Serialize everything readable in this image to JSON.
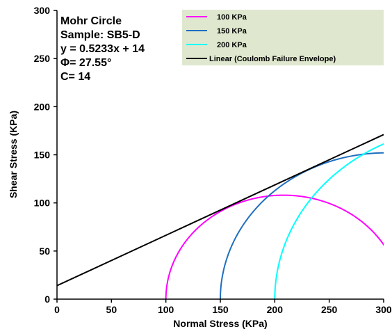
{
  "chart_data": {
    "type": "line",
    "xlabel": "Normal Stress (KPa)",
    "ylabel": "Shear Stress (KPa)",
    "xlim": [
      0,
      300
    ],
    "ylim": [
      0,
      300
    ],
    "xticks": [
      0,
      50,
      100,
      150,
      200,
      250,
      300
    ],
    "yticks": [
      0,
      50,
      100,
      150,
      200,
      250,
      300
    ],
    "grid": false,
    "legend_position": "top-right",
    "annotations": [
      "Mohr Circle",
      "Sample: SB5-D",
      "y = 0.5233x + 14",
      "Φ= 27.55°",
      "C= 14"
    ],
    "series": [
      {
        "name": "100 KPa",
        "kind": "arc",
        "color": "#ff00ff",
        "center": 208,
        "radius": 108
      },
      {
        "name": "150 KPa",
        "kind": "arc",
        "color": "#1f6fbf",
        "center": 302,
        "radius": 152
      },
      {
        "name": "200 KPa",
        "kind": "arc",
        "color": "#00ffff",
        "center": 380,
        "radius": 180
      },
      {
        "name": "Linear (Coulomb Failure Envelope)",
        "kind": "line",
        "color": "#000000",
        "slope": 0.5233,
        "intercept": 14
      }
    ]
  }
}
